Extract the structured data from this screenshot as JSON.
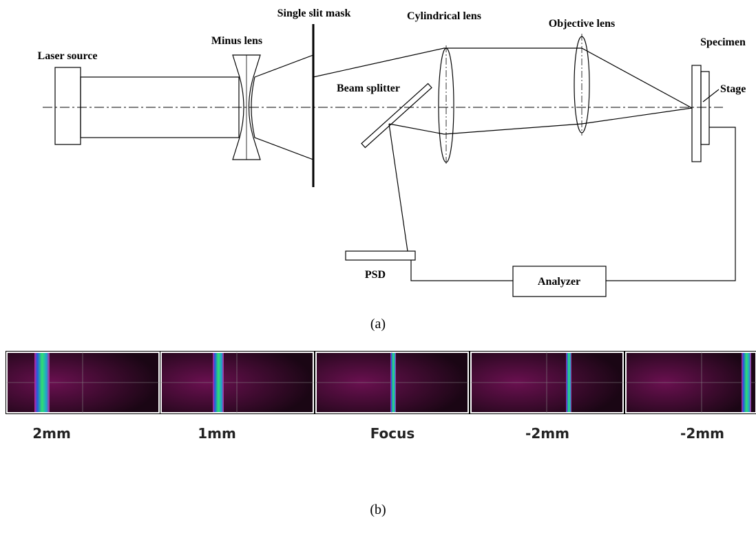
{
  "diagram": {
    "labels": {
      "laser_source": "Laser source",
      "minus_lens": "Minus lens",
      "single_slit_mask": "Single slit mask",
      "cylindrical_lens": "Cylindrical lens",
      "objective_lens": "Objective lens",
      "specimen": "Specimen",
      "stage": "Stage",
      "beam_splitter": "Beam splitter",
      "psd": "PSD",
      "analyzer": "Analyzer"
    },
    "caption": "(a)"
  },
  "images": {
    "panels": [
      "2mm",
      "1mm",
      "Focus",
      "-2mm",
      "-2mm"
    ],
    "caption": "(b)"
  }
}
